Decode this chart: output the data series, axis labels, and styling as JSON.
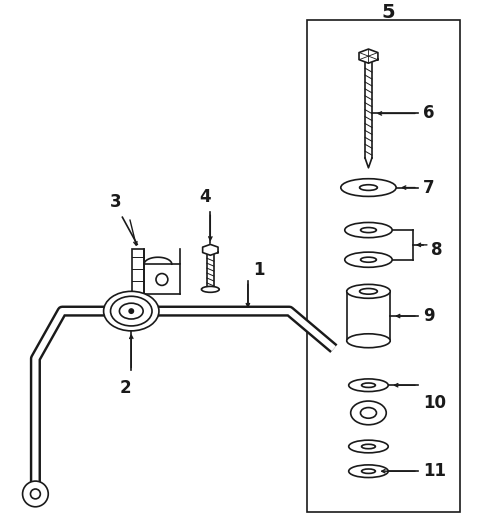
{
  "background_color": "#ffffff",
  "line_color": "#1a1a1a",
  "fig_width": 4.78,
  "fig_height": 5.23,
  "dpi": 100
}
